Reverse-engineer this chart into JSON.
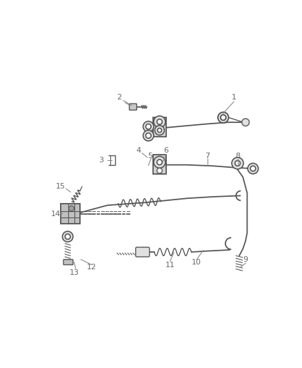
{
  "bg_color": "#ffffff",
  "line_color": "#555555",
  "label_color": "#666666",
  "fig_width": 4.38,
  "fig_height": 5.33,
  "dpi": 100
}
